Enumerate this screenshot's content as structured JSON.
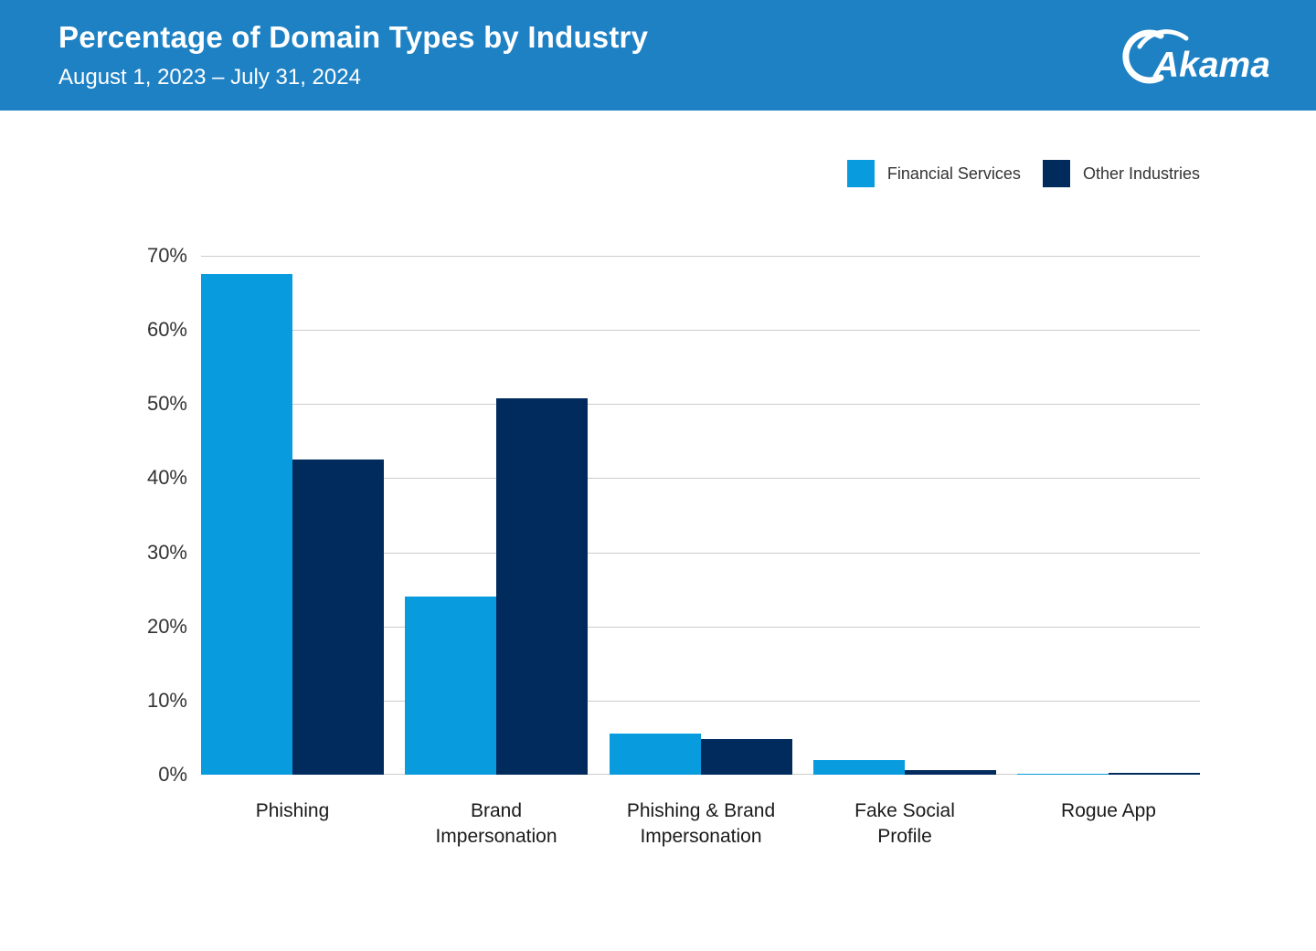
{
  "header": {
    "title": "Percentage of Domain Types by Industry",
    "subtitle": "August 1, 2023 – July 31, 2024",
    "logo_text": "Akamai"
  },
  "colors": {
    "header_bg": "#1E81C4",
    "financial_services": "#089CDF",
    "other_industries": "#002B5C",
    "gridline": "#CCCCCC",
    "axis_text": "#333333"
  },
  "chart_data": {
    "type": "bar",
    "title": "Percentage of Domain Types by Industry",
    "subtitle": "August 1, 2023 – July 31, 2024",
    "categories": [
      "Phishing",
      "Brand Impersonation",
      "Phishing & Brand Impersonation",
      "Fake Social Profile",
      "Rogue App"
    ],
    "category_label_lines": [
      [
        "Phishing"
      ],
      [
        "Brand",
        "Impersonation"
      ],
      [
        "Phishing & Brand",
        "Impersonation"
      ],
      [
        "Fake Social",
        "Profile"
      ],
      [
        "Rogue App"
      ]
    ],
    "series": [
      {
        "name": "Financial Services",
        "color": "#089CDF",
        "values": [
          67.5,
          24,
          5.5,
          2,
          0.1
        ]
      },
      {
        "name": "Other Industries",
        "color": "#002B5C",
        "values": [
          42.5,
          50.8,
          4.8,
          0.6,
          0.2
        ]
      }
    ],
    "ylabel": "",
    "xlabel": "",
    "ylim": [
      0,
      70
    ],
    "ytick_step": 10,
    "ytick_suffix": "%",
    "grid": true,
    "legend_position": "top-right"
  }
}
